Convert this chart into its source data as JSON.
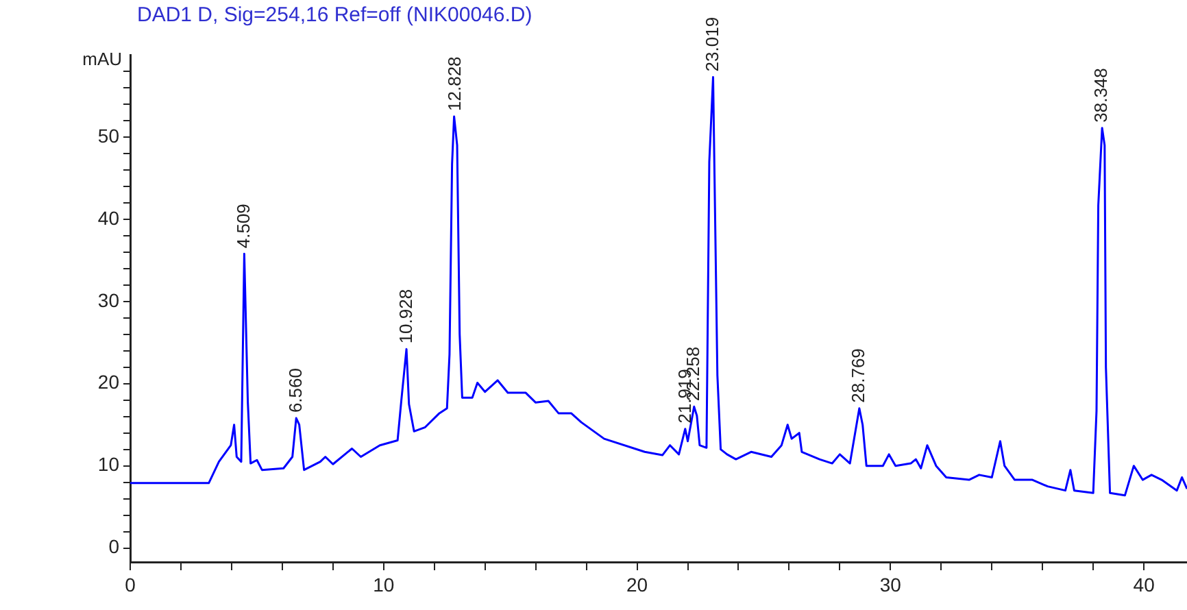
{
  "chart_data": {
    "type": "line",
    "title": "DAD1 D, Sig=254,16 Ref=off (NIK00046.D)",
    "ylabel": "mAU",
    "x": [
      0,
      3.1,
      3.5,
      3.97,
      4.1,
      4.2,
      4.38,
      4.5,
      4.64,
      4.75,
      5.0,
      5.2,
      6.05,
      6.4,
      6.55,
      6.67,
      6.86,
      7.5,
      7.7,
      8.0,
      8.75,
      9.1,
      9.85,
      10.55,
      10.7,
      10.9,
      11.0,
      11.2,
      11.64,
      12.2,
      12.5,
      12.6,
      12.7,
      12.78,
      12.9,
      13.0,
      13.1,
      13.5,
      13.7,
      14.0,
      14.5,
      14.9,
      15.6,
      16.0,
      16.5,
      16.9,
      17.4,
      17.8,
      18.7,
      20.3,
      21.0,
      21.3,
      21.65,
      21.9,
      22.0,
      22.25,
      22.36,
      22.47,
      22.74,
      22.85,
      23.0,
      23.17,
      23.3,
      23.55,
      23.9,
      24.5,
      25.3,
      25.7,
      25.94,
      26.1,
      26.4,
      26.5,
      27.2,
      27.7,
      28.0,
      28.4,
      28.77,
      28.9,
      29.05,
      29.7,
      29.94,
      30.2,
      30.8,
      31.0,
      31.2,
      31.45,
      31.8,
      32.2,
      33.1,
      33.5,
      34.0,
      34.33,
      34.5,
      34.9,
      35.6,
      36.2,
      36.9,
      37.1,
      37.25,
      38.0,
      38.13,
      38.2,
      38.35,
      38.45,
      38.5,
      38.66,
      39.25,
      39.6,
      39.95,
      40.3,
      40.7,
      41.3,
      41.5,
      41.7
    ],
    "series": [
      {
        "color": "#0000ff",
        "values": [
          7.9,
          7.9,
          10.5,
          12.5,
          15,
          11.1,
          10.5,
          35.8,
          17.8,
          10.3,
          10.7,
          9.5,
          9.7,
          11.1,
          15.8,
          15,
          9.5,
          10.5,
          11.1,
          10.2,
          12.1,
          11.1,
          12.5,
          13.1,
          18,
          24.2,
          17.5,
          14.2,
          14.7,
          16.4,
          17,
          23.6,
          46.7,
          52.5,
          49,
          26,
          18.3,
          18.3,
          20.1,
          19,
          20.4,
          18.9,
          18.9,
          17.7,
          17.9,
          16.4,
          16.4,
          15.3,
          13.3,
          11.7,
          11.3,
          12.5,
          11.4,
          14.5,
          13,
          17.2,
          16.1,
          12.5,
          12.2,
          47,
          57.3,
          21,
          12,
          11.4,
          10.8,
          11.7,
          11.1,
          12.5,
          15,
          13.3,
          14,
          11.7,
          10.8,
          10.3,
          11.4,
          10.3,
          17,
          15,
          10,
          10,
          11.4,
          10,
          10.3,
          10.8,
          9.7,
          12.5,
          10,
          8.6,
          8.3,
          8.9,
          8.6,
          13,
          10,
          8.3,
          8.3,
          7.5,
          7,
          9.5,
          7,
          6.7,
          16.7,
          41.7,
          51.1,
          49,
          22,
          6.7,
          6.4,
          10,
          8.3,
          8.9,
          8.3,
          7,
          8.6,
          7.2
        ]
      }
    ],
    "xlim": [
      0,
      41.7
    ],
    "ylim": [
      -1.7,
      60
    ],
    "xticks": [
      0,
      {
        "value": 2,
        "label": null
      },
      {
        "value": 4,
        "label": null
      },
      {
        "value": 6,
        "label": null
      },
      {
        "value": 8,
        "label": null
      },
      10,
      {
        "value": 12,
        "label": null
      },
      {
        "value": 14,
        "label": null
      },
      {
        "value": 16,
        "label": null
      },
      {
        "value": 18,
        "label": null
      },
      20,
      {
        "value": 22,
        "label": null
      },
      {
        "value": 24,
        "label": null
      },
      {
        "value": 26,
        "label": null
      },
      {
        "value": 28,
        "label": null
      },
      30,
      {
        "value": 32,
        "label": null
      },
      {
        "value": 34,
        "label": null
      },
      {
        "value": 36,
        "label": null
      },
      {
        "value": 38,
        "label": null
      },
      40
    ],
    "yticks": [
      0,
      {
        "value": 2,
        "label": null
      },
      {
        "value": 4,
        "label": null
      },
      {
        "value": 6,
        "label": null
      },
      {
        "value": 8,
        "label": null
      },
      10,
      {
        "value": 12,
        "label": null
      },
      {
        "value": 14,
        "label": null
      },
      {
        "value": 16,
        "label": null
      },
      {
        "value": 18,
        "label": null
      },
      20,
      {
        "value": 22,
        "label": null
      },
      {
        "value": 24,
        "label": null
      },
      {
        "value": 26,
        "label": null
      },
      {
        "value": 28,
        "label": null
      },
      30,
      {
        "value": 32,
        "label": null
      },
      {
        "value": 34,
        "label": null
      },
      {
        "value": 36,
        "label": null
      },
      {
        "value": 38,
        "label": null
      },
      40,
      {
        "value": 42,
        "label": null
      },
      {
        "value": 44,
        "label": null
      },
      {
        "value": 46,
        "label": null
      },
      {
        "value": 48,
        "label": null
      },
      50,
      {
        "value": 52,
        "label": null
      },
      {
        "value": 54,
        "label": null
      },
      {
        "value": 56,
        "label": null
      },
      {
        "value": 58,
        "label": null
      }
    ],
    "annotations": [
      {
        "text": "4.509",
        "x": 4.509,
        "y": 35.8
      },
      {
        "text": "6.560",
        "x": 6.56,
        "y": 15.8
      },
      {
        "text": "10.928",
        "x": 10.928,
        "y": 24.2
      },
      {
        "text": "12.828",
        "x": 12.828,
        "y": 52.5
      },
      {
        "text": "21.919",
        "x": 21.919,
        "y": 14.5
      },
      {
        "text": "22.258",
        "x": 22.258,
        "y": 17.2
      },
      {
        "text": "23.019",
        "x": 23.019,
        "y": 57.3
      },
      {
        "text": "28.769",
        "x": 28.769,
        "y": 17
      },
      {
        "text": "38.348",
        "x": 38.348,
        "y": 51.1
      }
    ],
    "grid": false,
    "legend": false,
    "marker": "none",
    "line_style": "solid"
  }
}
